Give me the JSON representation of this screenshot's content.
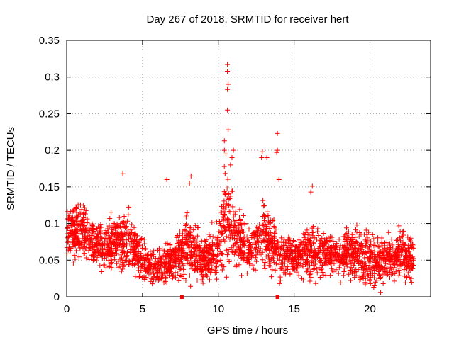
{
  "chart_data": {
    "type": "scatter",
    "title": "Day 267 of 2018, SRMTID for receiver hert",
    "xlabel": "GPS time / hours",
    "ylabel": "SRMTID / TECUs",
    "xlim": [
      0,
      24
    ],
    "ylim": [
      0,
      0.35
    ],
    "grid": true,
    "marker": "+",
    "color": "#ff0000",
    "x_ticks": [
      0,
      5,
      10,
      15,
      20
    ],
    "x_tick_labels": [
      "0",
      "5",
      "10",
      "15",
      "20"
    ],
    "y_ticks": [
      0,
      0.05,
      0.1,
      0.15,
      0.2,
      0.25,
      0.3,
      0.35
    ],
    "y_tick_labels": [
      "0",
      "0.05",
      "0.1",
      "0.15",
      "0.2",
      "0.25",
      "0.3",
      "0.35"
    ],
    "outliers": [
      {
        "x": 10.6,
        "y": 0.317
      },
      {
        "x": 10.6,
        "y": 0.308
      },
      {
        "x": 10.65,
        "y": 0.29
      },
      {
        "x": 10.6,
        "y": 0.283
      },
      {
        "x": 10.6,
        "y": 0.255
      },
      {
        "x": 10.65,
        "y": 0.228
      },
      {
        "x": 10.4,
        "y": 0.213
      },
      {
        "x": 10.4,
        "y": 0.2
      },
      {
        "x": 10.5,
        "y": 0.195
      },
      {
        "x": 11.0,
        "y": 0.2
      },
      {
        "x": 10.9,
        "y": 0.19
      },
      {
        "x": 10.8,
        "y": 0.18
      },
      {
        "x": 13.9,
        "y": 0.223
      },
      {
        "x": 13.9,
        "y": 0.2
      },
      {
        "x": 13.85,
        "y": 0.197
      },
      {
        "x": 12.9,
        "y": 0.198
      },
      {
        "x": 12.85,
        "y": 0.19
      },
      {
        "x": 13.2,
        "y": 0.19
      },
      {
        "x": 3.7,
        "y": 0.168
      },
      {
        "x": 6.6,
        "y": 0.16
      },
      {
        "x": 8.2,
        "y": 0.165
      },
      {
        "x": 8.1,
        "y": 0.155
      },
      {
        "x": 16.2,
        "y": 0.151
      },
      {
        "x": 16.1,
        "y": 0.143
      },
      {
        "x": 14.0,
        "y": 0.16
      },
      {
        "x": 20.7,
        "y": 0.006
      },
      {
        "x": 20.3,
        "y": 0.015
      }
    ],
    "density_profile": {
      "hours": [
        0,
        1,
        2,
        3,
        4,
        5,
        6,
        7,
        8,
        9,
        10,
        10.5,
        11,
        12,
        13,
        14,
        15,
        16,
        17,
        18,
        19,
        20,
        21,
        22,
        22.8
      ],
      "centre": [
        0.085,
        0.09,
        0.07,
        0.07,
        0.08,
        0.05,
        0.04,
        0.05,
        0.075,
        0.05,
        0.065,
        0.11,
        0.09,
        0.06,
        0.085,
        0.06,
        0.055,
        0.06,
        0.06,
        0.055,
        0.06,
        0.05,
        0.05,
        0.06,
        0.05
      ],
      "spread": [
        0.025,
        0.025,
        0.02,
        0.025,
        0.03,
        0.02,
        0.015,
        0.02,
        0.03,
        0.02,
        0.025,
        0.045,
        0.03,
        0.02,
        0.03,
        0.02,
        0.015,
        0.025,
        0.02,
        0.02,
        0.025,
        0.025,
        0.02,
        0.025,
        0.02
      ]
    },
    "points_per_hour": 120,
    "x_end": 22.9,
    "bottom_markers": [
      7.6,
      13.9
    ]
  }
}
